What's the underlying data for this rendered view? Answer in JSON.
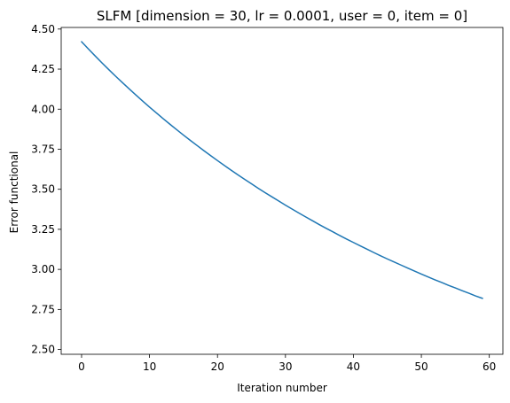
{
  "chart_data": {
    "type": "line",
    "title": "SLFM [dimension = 30, lr = 0.0001, user = 0, item = 0]",
    "xlabel": "Iteration number",
    "ylabel": "Error functional",
    "xlim": [
      -3,
      62
    ],
    "ylim": [
      2.47,
      4.51
    ],
    "xticks": [
      0,
      10,
      20,
      30,
      40,
      50,
      60
    ],
    "xtick_labels": [
      "0",
      "10",
      "20",
      "30",
      "40",
      "50",
      "60"
    ],
    "yticks": [
      2.5,
      2.75,
      3.0,
      3.25,
      3.5,
      3.75,
      4.0,
      4.25,
      4.5
    ],
    "ytick_labels": [
      "2.50",
      "2.75",
      "3.00",
      "3.25",
      "3.50",
      "3.75",
      "4.00",
      "4.25",
      "4.50"
    ],
    "grid": false,
    "series": [
      {
        "color": "#1f77b4",
        "x": [
          0,
          1,
          2,
          3,
          4,
          5,
          6,
          7,
          8,
          9,
          10,
          11,
          12,
          13,
          14,
          15,
          16,
          17,
          18,
          19,
          20,
          21,
          22,
          23,
          24,
          25,
          26,
          27,
          28,
          29,
          30,
          31,
          32,
          33,
          34,
          35,
          36,
          37,
          38,
          39,
          40,
          41,
          42,
          43,
          44,
          45,
          46,
          47,
          48,
          49,
          50,
          51,
          52,
          53,
          54,
          55,
          56,
          57,
          58,
          59
        ],
        "values": [
          4.421,
          4.376,
          4.332,
          4.289,
          4.247,
          4.206,
          4.166,
          4.127,
          4.088,
          4.05,
          4.013,
          3.977,
          3.941,
          3.906,
          3.872,
          3.838,
          3.805,
          3.773,
          3.741,
          3.71,
          3.679,
          3.649,
          3.619,
          3.59,
          3.562,
          3.534,
          3.506,
          3.479,
          3.453,
          3.427,
          3.401,
          3.376,
          3.351,
          3.327,
          3.303,
          3.279,
          3.256,
          3.234,
          3.211,
          3.189,
          3.168,
          3.147,
          3.126,
          3.105,
          3.085,
          3.065,
          3.046,
          3.027,
          3.008,
          2.989,
          2.971,
          2.953,
          2.935,
          2.918,
          2.9,
          2.884,
          2.867,
          2.851,
          2.834,
          2.819
        ]
      }
    ]
  }
}
